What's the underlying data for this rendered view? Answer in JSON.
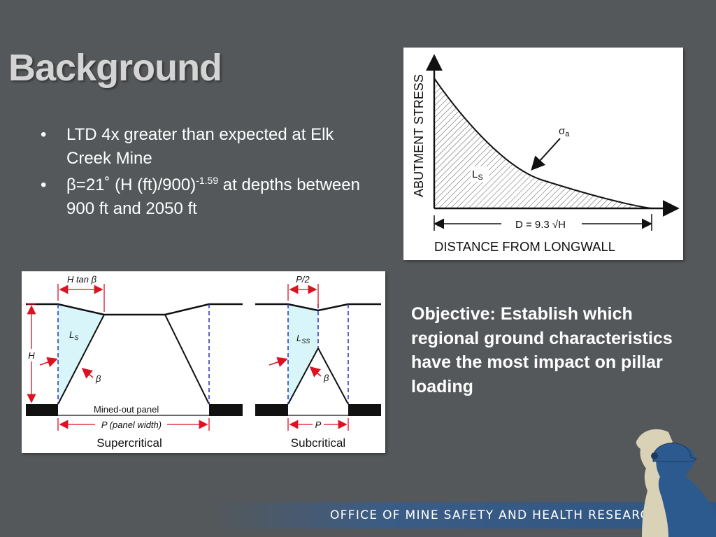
{
  "slide": {
    "title": "Background",
    "bullets": [
      {
        "text": "LTD 4x greater than expected at Elk Creek Mine"
      },
      {
        "pre": "β=21˚  (H (ft)/900)",
        "sup": "-1.59",
        "post": " at depths between 900 ft and 2050 ft"
      }
    ],
    "bullet_symbol": "•",
    "objective": "Objective: Establish which regional ground characteristics have the most impact on pillar loading",
    "footer": "OFFICE OF MINE SAFETY AND HEALTH RESEARCH"
  },
  "abutment_diagram": {
    "y_axis_label": "ABUTMENT STRESS",
    "x_axis_label": "DISTANCE FROM LONGWALL",
    "sigma_label": "σ",
    "sigma_sub": "a",
    "ls_label": "L",
    "ls_sub": "S",
    "dim_label": "D = 9.3 √H"
  },
  "panel_diagram": {
    "super": {
      "top_dim": "H tan β",
      "h_label": "H",
      "ls_label": "L",
      "ls_sub": "S",
      "beta": "β",
      "panel_label": "Mined-out panel",
      "bottom_dim": "P (panel width)",
      "caption": "Supercritical"
    },
    "sub": {
      "top_dim": "P/2",
      "ls_label": "L",
      "ls_sub": "SS",
      "beta": "β",
      "bottom_dim": "P",
      "caption": "Subcritical"
    }
  },
  "colors": {
    "background": "#55585a",
    "title": "#d4d4d4",
    "footer_band": "#2f5683",
    "ls_fill": "#d8f6fa",
    "dashed": "#2233bb",
    "red": "#dd1122"
  }
}
